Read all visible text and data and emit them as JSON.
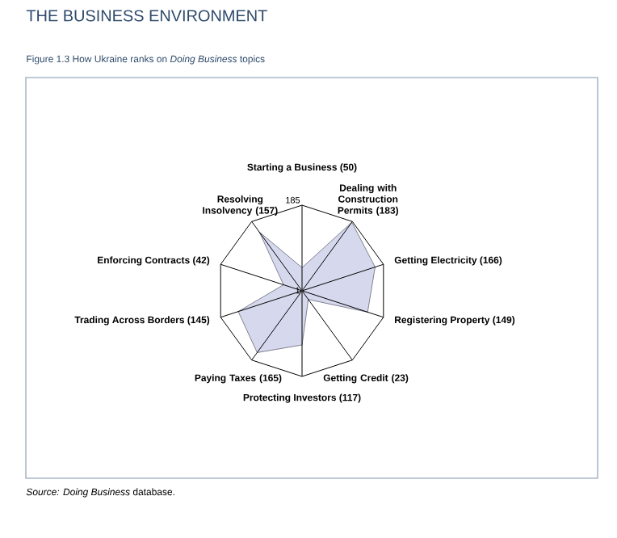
{
  "chart_data": {
    "type": "radar",
    "title": "THE BUSINESS ENVIRONMENT",
    "subtitle": "Figure 1.3 How Ukraine ranks on *Doing Business* topics",
    "categories": [
      "Starting a Business (50)",
      "Dealing with Construction Permits (183)",
      "Getting Electricity (166)",
      "Registering Property (149)",
      "Getting Credit (23)",
      "Protecting Investors (117)",
      "Paying Taxes (165)",
      "Trading Across Borders (145)",
      "Enforcing Contracts (42)",
      "Resolving Insolvency (157)"
    ],
    "series": [
      {
        "color": "#d6d9ee",
        "values": [
          50,
          183,
          166,
          149,
          23,
          117,
          165,
          145,
          42,
          157
        ]
      }
    ],
    "ylim": [
      1,
      185
    ],
    "yticks": [
      1,
      185
    ],
    "grid": true,
    "annotations": [
      "*Source: Doing Business* database."
    ]
  }
}
